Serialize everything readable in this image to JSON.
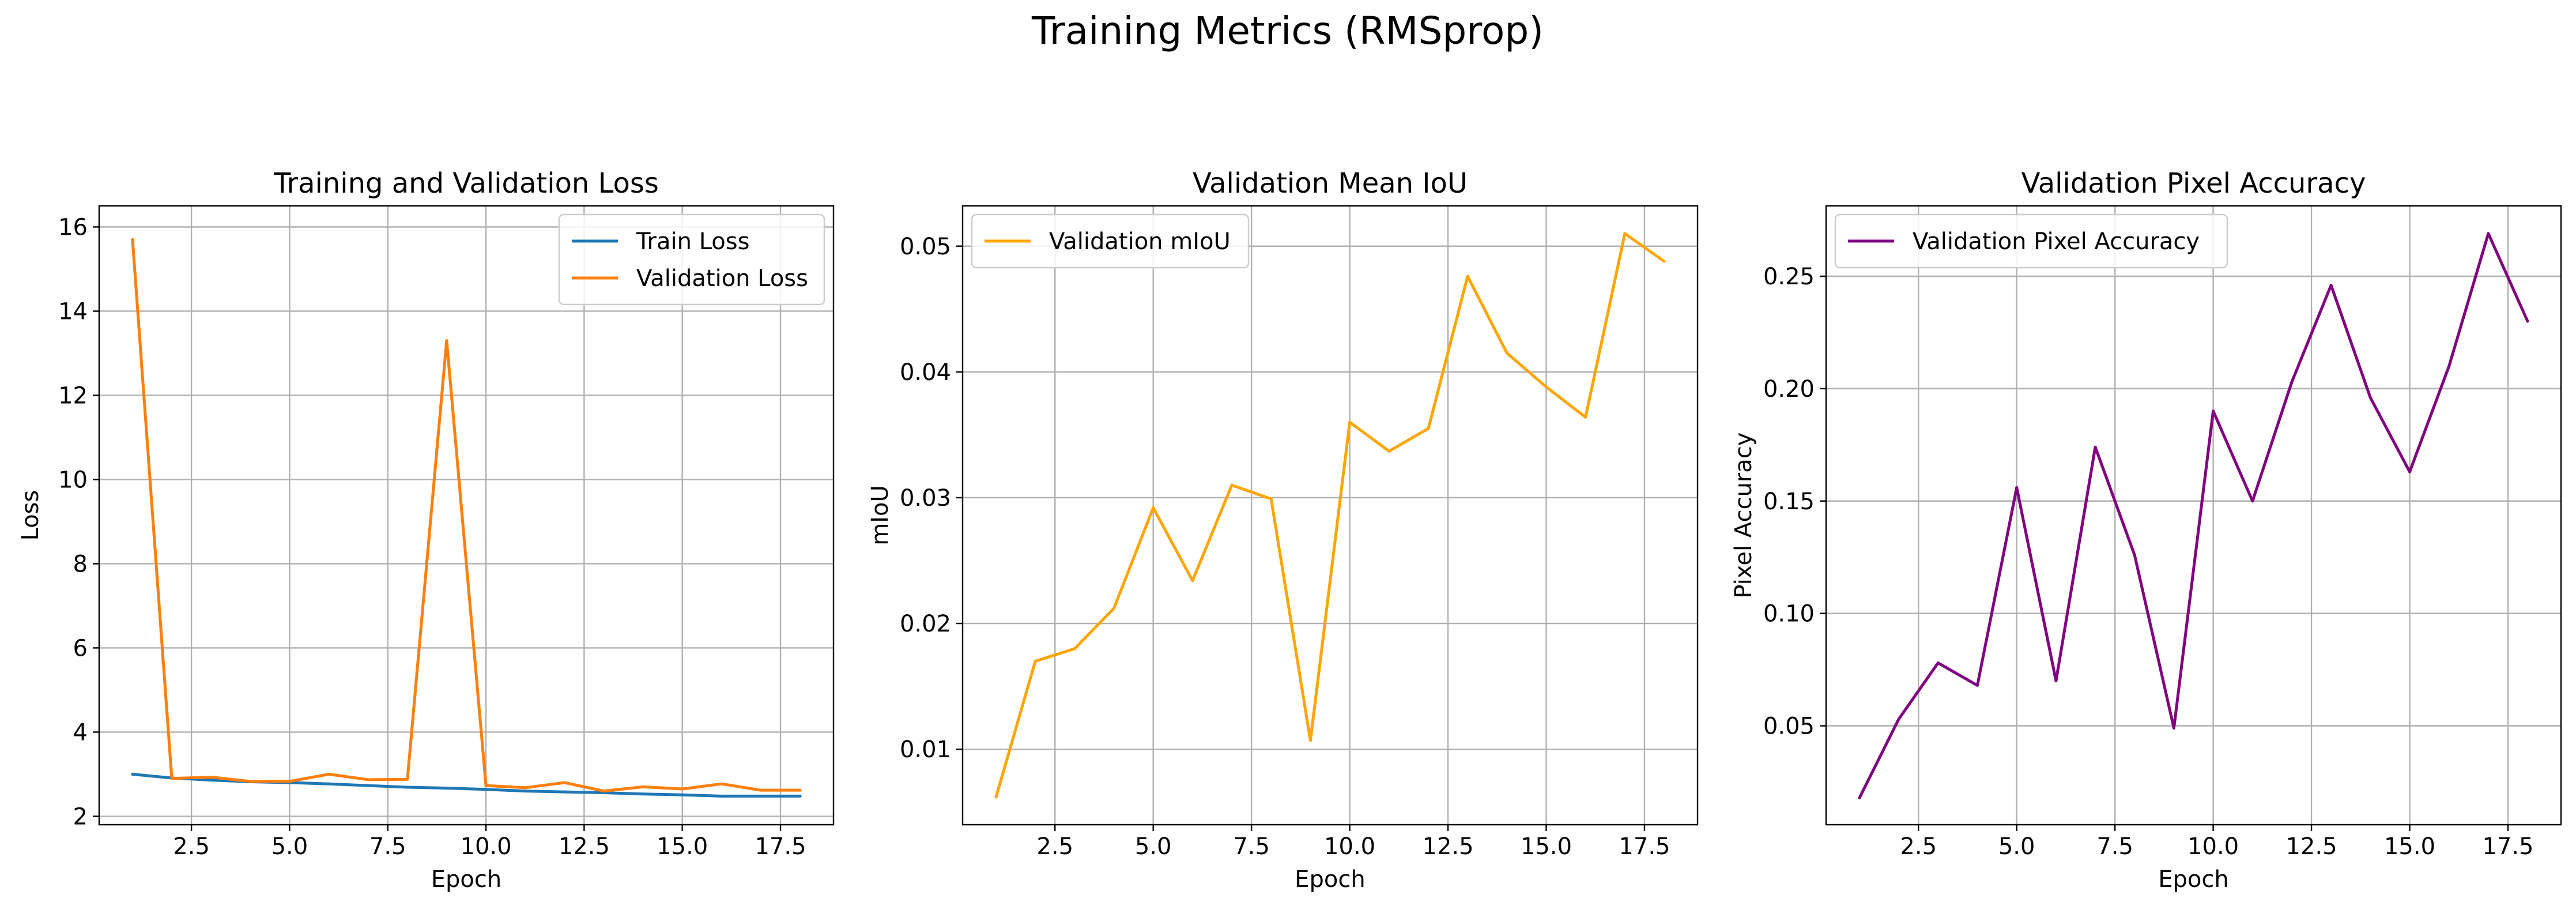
{
  "figure": {
    "suptitle": "Training Metrics (RMSprop)"
  },
  "chart_data": [
    {
      "type": "line",
      "title": "Training and Validation Loss",
      "xlabel": "Epoch",
      "ylabel": "Loss",
      "xlim": [
        0.15,
        18.85
      ],
      "ylim": [
        1.8,
        16.5
      ],
      "xticks": [
        2.5,
        5.0,
        7.5,
        10.0,
        12.5,
        15.0,
        17.5
      ],
      "xtick_labels": [
        "2.5",
        "5.0",
        "7.5",
        "10.0",
        "12.5",
        "15.0",
        "17.5"
      ],
      "yticks": [
        2,
        4,
        6,
        8,
        10,
        12,
        14,
        16
      ],
      "ytick_labels": [
        "2",
        "4",
        "6",
        "8",
        "10",
        "12",
        "14",
        "16"
      ],
      "grid": true,
      "legend_position": "top-right",
      "x": [
        1,
        2,
        3,
        4,
        5,
        6,
        7,
        8,
        9,
        10,
        11,
        12,
        13,
        14,
        15,
        16,
        17,
        18
      ],
      "series": [
        {
          "name": "Train Loss",
          "color": "#1f77b4",
          "values": [
            3.0,
            2.91,
            2.86,
            2.82,
            2.8,
            2.77,
            2.73,
            2.69,
            2.67,
            2.64,
            2.6,
            2.58,
            2.56,
            2.53,
            2.51,
            2.48,
            2.48,
            2.48
          ]
        },
        {
          "name": "Validation Loss",
          "color": "#ff7f0e",
          "values": [
            15.7,
            2.9,
            2.93,
            2.83,
            2.83,
            3.0,
            2.87,
            2.88,
            13.3,
            2.73,
            2.68,
            2.8,
            2.6,
            2.7,
            2.65,
            2.77,
            2.62,
            2.62
          ]
        }
      ]
    },
    {
      "type": "line",
      "title": "Validation Mean IoU",
      "xlabel": "Epoch",
      "ylabel": "mIoU",
      "xlim": [
        0.15,
        18.85
      ],
      "ylim": [
        0.004,
        0.0532
      ],
      "xticks": [
        2.5,
        5.0,
        7.5,
        10.0,
        12.5,
        15.0,
        17.5
      ],
      "xtick_labels": [
        "2.5",
        "5.0",
        "7.5",
        "10.0",
        "12.5",
        "15.0",
        "17.5"
      ],
      "yticks": [
        0.01,
        0.02,
        0.03,
        0.04,
        0.05
      ],
      "ytick_labels": [
        "0.01",
        "0.02",
        "0.03",
        "0.04",
        "0.05"
      ],
      "grid": true,
      "legend_position": "top-left",
      "x": [
        1,
        2,
        3,
        4,
        5,
        6,
        7,
        8,
        9,
        10,
        11,
        12,
        13,
        14,
        15,
        16,
        17,
        18
      ],
      "series": [
        {
          "name": "Validation mIoU",
          "color": "#ffa500",
          "values": [
            0.0062,
            0.017,
            0.018,
            0.0212,
            0.0292,
            0.0234,
            0.031,
            0.0299,
            0.0107,
            0.036,
            0.0337,
            0.0355,
            0.0476,
            0.0415,
            0.0388,
            0.0364,
            0.051,
            0.0488
          ]
        }
      ]
    },
    {
      "type": "line",
      "title": "Validation Pixel Accuracy",
      "xlabel": "Epoch",
      "ylabel": "Pixel Accuracy",
      "xlim": [
        0.15,
        18.85
      ],
      "ylim": [
        0.006,
        0.2813
      ],
      "xticks": [
        2.5,
        5.0,
        7.5,
        10.0,
        12.5,
        15.0,
        17.5
      ],
      "xtick_labels": [
        "2.5",
        "5.0",
        "7.5",
        "10.0",
        "12.5",
        "15.0",
        "17.5"
      ],
      "yticks": [
        0.05,
        0.1,
        0.15,
        0.2,
        0.25
      ],
      "ytick_labels": [
        "0.05",
        "0.10",
        "0.15",
        "0.20",
        "0.25"
      ],
      "grid": true,
      "legend_position": "top-left",
      "x": [
        1,
        2,
        3,
        4,
        5,
        6,
        7,
        8,
        9,
        10,
        11,
        12,
        13,
        14,
        15,
        16,
        17,
        18
      ],
      "series": [
        {
          "name": "Validation Pixel Accuracy",
          "color": "#800080",
          "values": [
            0.018,
            0.053,
            0.078,
            0.068,
            0.156,
            0.07,
            0.174,
            0.126,
            0.049,
            0.19,
            0.15,
            0.203,
            0.246,
            0.196,
            0.163,
            0.21,
            0.269,
            0.23
          ]
        }
      ]
    }
  ]
}
